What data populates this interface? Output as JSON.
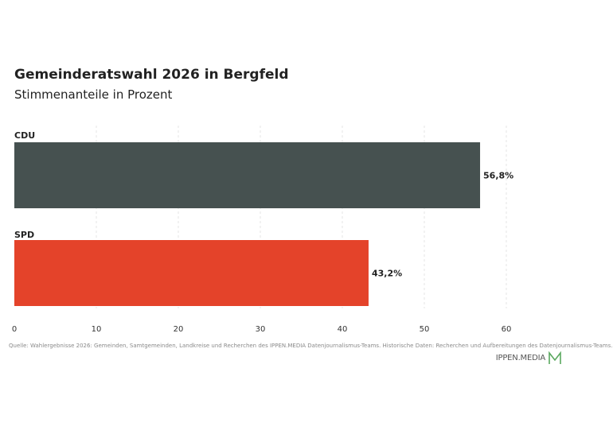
{
  "header": {
    "title": "Gemeinderatswahl 2026 in Bergfeld",
    "subtitle": "Stimmenanteile in Prozent"
  },
  "chart_data": {
    "type": "bar",
    "orientation": "horizontal",
    "title": "Gemeinderatswahl 2026 in Bergfeld",
    "subtitle": "Stimmenanteile in Prozent",
    "categories": [
      "CDU",
      "SPD"
    ],
    "values": [
      56.8,
      43.2
    ],
    "value_labels": [
      "56,8%",
      "43,2%"
    ],
    "colors": [
      "#465150",
      "#e4432a"
    ],
    "xlim": [
      0,
      60
    ],
    "x_ticks": [
      0,
      10,
      20,
      30,
      40,
      50,
      60
    ],
    "xlabel": "",
    "ylabel": "",
    "grid": "vertical dashed",
    "legend": "none"
  },
  "footer": {
    "source": "Quelle: Wahlergebnisse 2026: Gemeinden, Samtgemeinden, Landkreise und Recherchen des IPPEN.MEDIA Datenjournalismus-Teams. Historische Daten: Recherchen und Aufbereitungen des Datenjournalismus-Teams.",
    "brand": "IPPEN.MEDIA",
    "brand_color": "#5aa85f"
  }
}
